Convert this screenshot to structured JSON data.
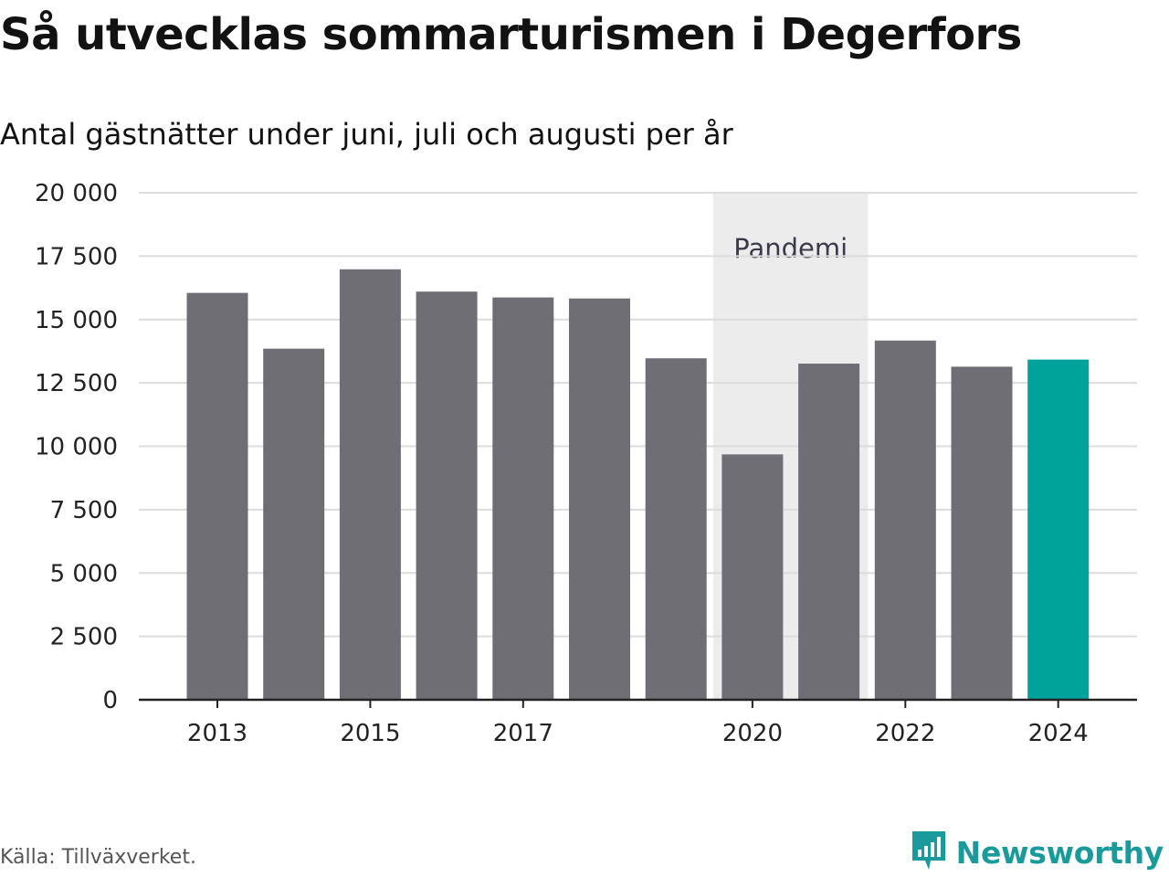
{
  "title": "Så utvecklas sommarturismen i Degerfors",
  "subtitle": "Antal gästnätter under juni, juli och augusti per år",
  "source": "Källa: Tillväxverket.",
  "brand": {
    "name": "Newsworthy",
    "icon": "newsworthy-logo-icon",
    "color": "#1a9a9a"
  },
  "colors": {
    "bar": "#6f6e74",
    "highlight": "#00a39a",
    "band": "#ececec",
    "grid": "#dcdcdc",
    "axis": "#222222"
  },
  "chart_data": {
    "type": "bar",
    "categories": [
      "2013",
      "2014",
      "2015",
      "2016",
      "2017",
      "2018",
      "2019",
      "2020",
      "2021",
      "2022",
      "2023",
      "2024"
    ],
    "values": [
      16050,
      13850,
      16980,
      16100,
      15870,
      15830,
      13470,
      9680,
      13260,
      14170,
      13140,
      13420
    ],
    "highlight_index": 11,
    "x_tick_labels": [
      "2013",
      "2015",
      "2017",
      "2020",
      "2022",
      "2024"
    ],
    "y_ticks": [
      0,
      2500,
      5000,
      7500,
      10000,
      12500,
      15000,
      17500,
      20000
    ],
    "y_tick_labels": [
      "0",
      "2 500",
      "5 000",
      "7 500",
      "10 000",
      "12 500",
      "15 000",
      "17 500",
      "20 000"
    ],
    "ylim": [
      0,
      20000
    ],
    "grid": true,
    "annotations": [
      {
        "label": "Pandemi",
        "from": "2020",
        "to": "2021"
      }
    ]
  }
}
